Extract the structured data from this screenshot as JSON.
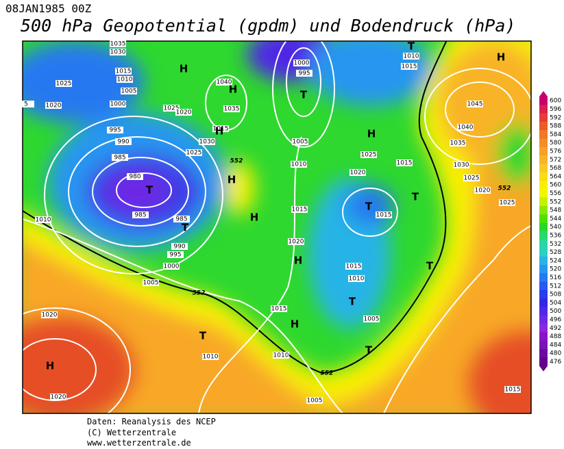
{
  "header": {
    "date": "08JAN1985 00Z",
    "title": "500 hPa Geopotential (gpdm) und Bodendruck (hPa)"
  },
  "footer": [
    "Daten: Reanalysis des NCEP",
    "(C) Wetterzentrale",
    "www.wetterzentrale.de"
  ],
  "colorbar": {
    "levels": [
      600,
      596,
      592,
      588,
      584,
      580,
      576,
      572,
      568,
      564,
      560,
      556,
      552,
      548,
      544,
      540,
      536,
      532,
      528,
      524,
      520,
      516,
      512,
      508,
      504,
      500,
      496,
      492,
      488,
      484,
      480,
      476
    ],
    "colors": [
      "#c8006e",
      "#dc1e50",
      "#e63c32",
      "#ec5a28",
      "#f07828",
      "#f48c28",
      "#f8a028",
      "#f8b428",
      "#f8c828",
      "#f8dc14",
      "#f8f000",
      "#f0f800",
      "#c8f000",
      "#8ce800",
      "#50e000",
      "#28d828",
      "#28d870",
      "#28d8a0",
      "#28d0c8",
      "#28b4e6",
      "#2896f0",
      "#2878f0",
      "#285af0",
      "#283cf0",
      "#3228e6",
      "#5028e6",
      "#6e28e6",
      "#8c28dc",
      "#8c14c8",
      "#7814b4",
      "#6e0aa0",
      "#64008c"
    ]
  },
  "map": {
    "isobar_labels": [
      "1035",
      "1030",
      "1025",
      "1020",
      "1015",
      "1010",
      "1005",
      "1000",
      "995",
      "990",
      "985",
      "980",
      "985",
      "985",
      "990",
      "995",
      "1000",
      "1005",
      "1010",
      "1020",
      "1020",
      "1010",
      "1010",
      "1005",
      "1015",
      "1020",
      "1015",
      "1010",
      "1005",
      "1000",
      "995",
      "1040",
      "1035",
      "1025",
      "1020",
      "1015",
      "1030",
      "1025",
      "1025",
      "1020",
      "1015",
      "1015",
      "1015",
      "1010",
      "1005",
      "1010",
      "1015",
      "1045",
      "1040",
      "1035",
      "1030",
      "1025",
      "1020",
      "1025",
      "1015",
      "5"
    ],
    "centers": [
      "H",
      "H",
      "T",
      "H",
      "H",
      "H",
      "T",
      "T",
      "H",
      "H",
      "T",
      "T",
      "T",
      "T",
      "T",
      "T",
      "H",
      "H",
      "H",
      "T"
    ],
    "contour_labels": [
      "552",
      "552",
      "552",
      "552"
    ]
  }
}
